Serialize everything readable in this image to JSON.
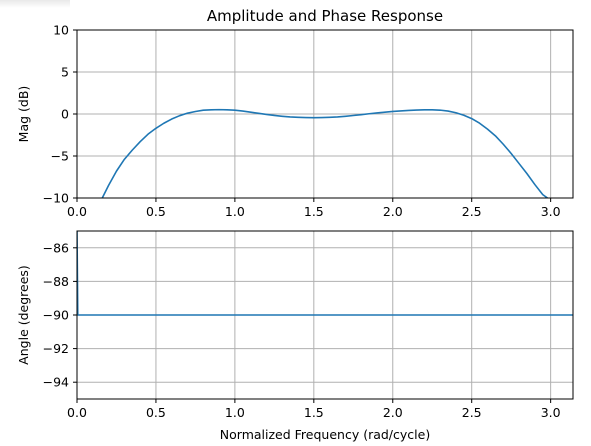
{
  "figure": {
    "title": "Amplitude and Phase Response",
    "line_color": "#1f77b4",
    "grid_color": "#b0b0b0"
  },
  "chart_data": [
    {
      "type": "line",
      "title": "Amplitude and Phase Response",
      "xlabel": "",
      "ylabel": "Mag (dB)",
      "xlim": [
        0,
        3.1416
      ],
      "ylim": [
        -10,
        10
      ],
      "grid": true,
      "xticks": [
        "0.0",
        "0.5",
        "1.0",
        "1.5",
        "2.0",
        "2.5",
        "3.0"
      ],
      "yticks": [
        "−10",
        "−5",
        "0",
        "5",
        "10"
      ],
      "x": [
        0.16,
        0.2,
        0.25,
        0.3,
        0.35,
        0.4,
        0.45,
        0.5,
        0.55,
        0.6,
        0.65,
        0.7,
        0.75,
        0.8,
        0.85,
        0.9,
        0.95,
        1.0,
        1.05,
        1.1,
        1.15,
        1.2,
        1.25,
        1.3,
        1.35,
        1.4,
        1.45,
        1.5,
        1.55,
        1.6,
        1.65,
        1.7,
        1.75,
        1.8,
        1.85,
        1.9,
        1.95,
        2.0,
        2.05,
        2.1,
        2.15,
        2.2,
        2.25,
        2.3,
        2.35,
        2.4,
        2.45,
        2.5,
        2.55,
        2.6,
        2.65,
        2.7,
        2.75,
        2.8,
        2.85,
        2.9,
        2.95,
        2.98
      ],
      "y": [
        -10.0,
        -8.5,
        -6.8,
        -5.4,
        -4.3,
        -3.3,
        -2.4,
        -1.7,
        -1.1,
        -0.6,
        -0.2,
        0.1,
        0.3,
        0.45,
        0.5,
        0.52,
        0.5,
        0.45,
        0.35,
        0.22,
        0.08,
        -0.05,
        -0.17,
        -0.27,
        -0.35,
        -0.4,
        -0.43,
        -0.44,
        -0.43,
        -0.4,
        -0.35,
        -0.27,
        -0.18,
        -0.08,
        0.03,
        0.13,
        0.22,
        0.3,
        0.37,
        0.43,
        0.47,
        0.5,
        0.5,
        0.46,
        0.35,
        0.15,
        -0.15,
        -0.55,
        -1.1,
        -1.8,
        -2.6,
        -3.6,
        -4.7,
        -5.9,
        -7.1,
        -8.4,
        -9.6,
        -10.0
      ],
      "series": [
        {
          "name": "",
          "color": "#1f77b4"
        }
      ]
    },
    {
      "type": "line",
      "title": "",
      "xlabel": "Normalized Frequency (rad/cycle)",
      "ylabel": "Angle (degrees)",
      "xlim": [
        0,
        3.1416
      ],
      "ylim": [
        -95,
        -85
      ],
      "grid": true,
      "xticks": [
        "0.0",
        "0.5",
        "1.0",
        "1.5",
        "2.0",
        "2.5",
        "3.0"
      ],
      "yticks": [
        "−94",
        "−92",
        "−90",
        "−88",
        "−86"
      ],
      "x": [
        0.0,
        0.005,
        3.1416
      ],
      "y": [
        -85.0,
        -90.0,
        -90.0
      ],
      "series": [
        {
          "name": "",
          "color": "#1f77b4"
        }
      ]
    }
  ]
}
